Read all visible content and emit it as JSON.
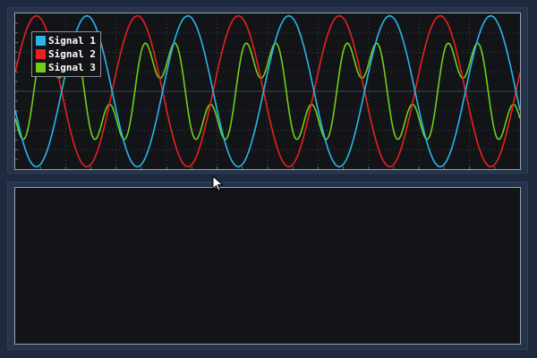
{
  "colors": {
    "window_bg": "#1d2a3f",
    "panel_bg": "#25344b",
    "plot_bg": "#121417",
    "signal_1": "#29b6e8",
    "signal_2": "#e8201f",
    "signal_3": "#6fcf1a"
  },
  "chart_data": [
    {
      "type": "line",
      "title": "",
      "xlabel": "",
      "ylabel": "",
      "grid": true,
      "legend_position": "top-left",
      "xlim": [
        0,
        1
      ],
      "ylim": [
        -1,
        1
      ],
      "series": [
        {
          "name": "Signal 1",
          "color": "#29b6e8",
          "description_values": {
            "amplitude": 0.98,
            "cycles": 5,
            "phase_deg": 0
          }
        },
        {
          "name": "Signal 2",
          "color": "#e8201f",
          "description_values": {
            "amplitude": 0.98,
            "cycles": 5,
            "phase_deg": 180
          }
        },
        {
          "name": "Signal 3",
          "color": "#6fcf1a",
          "description_values": {
            "amplitude": 0.85,
            "cycles": 5,
            "harmonic": 3
          }
        }
      ]
    },
    {
      "type": "line",
      "title": "",
      "series": []
    }
  ]
}
